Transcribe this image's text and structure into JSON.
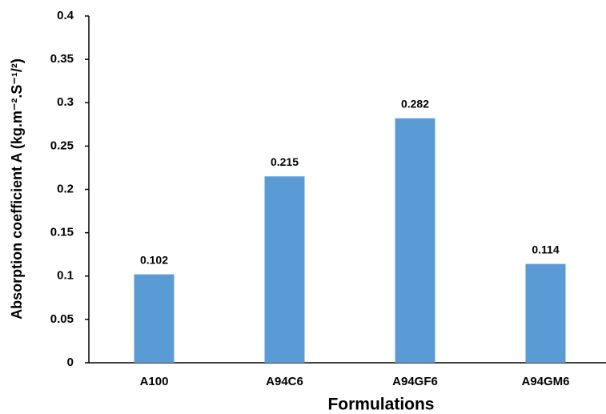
{
  "chart_data": {
    "type": "bar",
    "x_label": "Formulations",
    "y_label": "Absorption coefficient A (kg.m⁻².S⁻¹/²)",
    "categories": [
      "A100",
      "A94C6",
      "A94GF6",
      "A94GM6"
    ],
    "values": [
      0.102,
      0.215,
      0.282,
      0.114
    ],
    "color": "#5b9bd5",
    "ylim": [
      0,
      0.4
    ],
    "yticks": [
      0,
      0.05,
      0.1,
      0.15,
      0.2,
      0.25,
      0.3,
      0.35,
      0.4
    ],
    "grid": false
  }
}
